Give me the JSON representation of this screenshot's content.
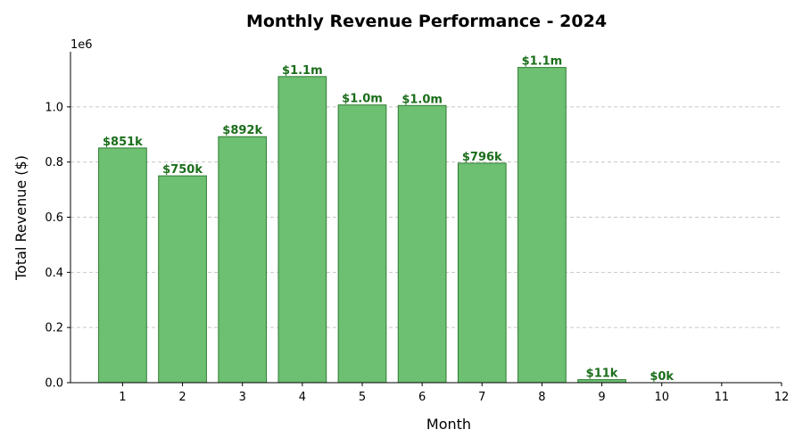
{
  "chart_data": {
    "type": "bar",
    "title": "Monthly Revenue Performance - 2024",
    "xlabel": "Month",
    "ylabel": "Total Revenue ($)",
    "y_scale_note": "1e6",
    "x": [
      1,
      2,
      3,
      4,
      5,
      6,
      7,
      8,
      9,
      10
    ],
    "values": [
      851000,
      750000,
      892000,
      1110000,
      1007000,
      1005000,
      796000,
      1143000,
      11000,
      0
    ],
    "data_labels": [
      "$851k",
      "$750k",
      "$892k",
      "$1.1m",
      "$1.0m",
      "$1.0m",
      "$796k",
      "$1.1m",
      "$11k",
      "$0k"
    ],
    "xlim": [
      0.13,
      12
    ],
    "ylim": [
      0,
      1200000
    ],
    "x_ticks": [
      1,
      2,
      3,
      4,
      5,
      6,
      7,
      8,
      9,
      10,
      11,
      12
    ],
    "y_ticks": [
      0,
      200000,
      400000,
      600000,
      800000,
      1000000
    ],
    "y_tick_labels": [
      "0.0",
      "0.2",
      "0.4",
      "0.6",
      "0.8",
      "1.0"
    ],
    "grid": "y-dashed",
    "bar_color": "#6dbf72",
    "bar_edge_color": "#2e7d32",
    "label_color": "#1b6e1b"
  }
}
